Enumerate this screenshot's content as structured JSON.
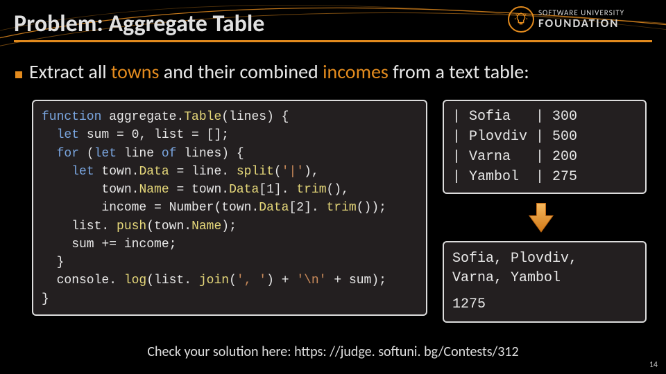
{
  "colors": {
    "background": "#000000",
    "accent": "#e38b1e",
    "box_bg": "#231f20",
    "box_border": "#dcdcdc",
    "text": "#e8e8e8",
    "keyword": "#7aa6e0",
    "func": "#e6d87a",
    "string": "#c98a5a",
    "arrow_outer": "#c46a13",
    "arrow_inner": "#f2a23c"
  },
  "title": "Problem: Aggregate Table",
  "logo": {
    "l1": "SOFTWARE UNIVERSITY",
    "l2": "FOUNDATION"
  },
  "bullet": {
    "pre": "Extract all ",
    "hl1": "towns",
    "mid": " and their combined ",
    "hl2": "incomes",
    "post": " from a text table:"
  },
  "code": {
    "lines": [
      [
        [
          "kw",
          "function"
        ],
        [
          "tok",
          " aggregate."
        ],
        [
          "fn",
          "Table"
        ],
        [
          "tok",
          "(lines) {"
        ]
      ],
      [
        [
          "tok",
          "  "
        ],
        [
          "kw",
          "let"
        ],
        [
          "tok",
          " sum = 0, list = [];"
        ]
      ],
      [
        [
          "tok",
          "  "
        ],
        [
          "kw",
          "for"
        ],
        [
          "tok",
          " ("
        ],
        [
          "kw",
          "let"
        ],
        [
          "tok",
          " line "
        ],
        [
          "kw",
          "of"
        ],
        [
          "tok",
          " lines) {"
        ]
      ],
      [
        [
          "tok",
          "    "
        ],
        [
          "kw",
          "let"
        ],
        [
          "tok",
          " town."
        ],
        [
          "fn",
          "Data"
        ],
        [
          "tok",
          " = line. "
        ],
        [
          "fn",
          "split"
        ],
        [
          "tok",
          "("
        ],
        [
          "str",
          "'|'"
        ],
        [
          "tok",
          "),"
        ]
      ],
      [
        [
          "tok",
          "        town."
        ],
        [
          "fn",
          "Name"
        ],
        [
          "tok",
          " = town."
        ],
        [
          "fn",
          "Data"
        ],
        [
          "tok",
          "[1]. "
        ],
        [
          "fn",
          "trim"
        ],
        [
          "tok",
          "(),"
        ]
      ],
      [
        [
          "tok",
          "        income = Number(town."
        ],
        [
          "fn",
          "Data"
        ],
        [
          "tok",
          "[2]. "
        ],
        [
          "fn",
          "trim"
        ],
        [
          "tok",
          "());"
        ]
      ],
      [
        [
          "tok",
          "    list. "
        ],
        [
          "fn",
          "push"
        ],
        [
          "tok",
          "(town."
        ],
        [
          "fn",
          "Name"
        ],
        [
          "tok",
          ");"
        ]
      ],
      [
        [
          "tok",
          "    sum += income;"
        ]
      ],
      [
        [
          "tok",
          "  }"
        ]
      ],
      [
        [
          "tok",
          "  console. "
        ],
        [
          "fn",
          "log"
        ],
        [
          "tok",
          "(list. "
        ],
        [
          "fn",
          "join"
        ],
        [
          "tok",
          "("
        ],
        [
          "str",
          "', '"
        ],
        [
          "tok",
          ") + "
        ],
        [
          "str",
          "'\\n'"
        ],
        [
          "tok",
          " + sum);"
        ]
      ],
      [
        [
          "tok",
          "}"
        ]
      ]
    ]
  },
  "table": {
    "rows": [
      {
        "town": "Sofia",
        "income": "300"
      },
      {
        "town": "Plovdiv",
        "income": "500"
      },
      {
        "town": "Varna",
        "income": "200"
      },
      {
        "town": "Yambol",
        "income": "275"
      }
    ],
    "town_col_width": 8
  },
  "output": {
    "line1": "Sofia, Plovdiv,",
    "line2": "Varna, Yambol",
    "sum": "1275"
  },
  "footer": {
    "pre": "Check your solution here: ",
    "link": "https: //judge. softuni. bg/Contests/312"
  },
  "page_number": "14"
}
